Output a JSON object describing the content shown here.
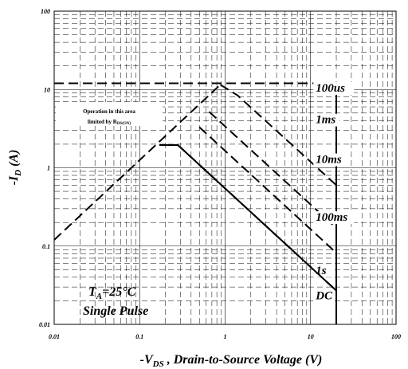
{
  "chart_data": {
    "type": "line",
    "title": "",
    "xlabel": {
      "prefix": "-V",
      "sub": "DS",
      "suffix": " , Drain-to-Source Voltage (V)"
    },
    "ylabel": {
      "prefix": "-I",
      "sub": "D",
      "suffix": " (A)"
    },
    "x_scale": "log",
    "y_scale": "log",
    "xlim": [
      0.01,
      100
    ],
    "ylim": [
      0.01,
      100
    ],
    "x_ticks": [
      {
        "value": 0.01,
        "label": "0.01"
      },
      {
        "value": 0.1,
        "label": "0.1"
      },
      {
        "value": 1,
        "label": "1"
      },
      {
        "value": 10,
        "label": "10"
      },
      {
        "value": 100,
        "label": "100"
      }
    ],
    "y_ticks": [
      {
        "value": 0.01,
        "label": "0.01"
      },
      {
        "value": 0.1,
        "label": "0.1"
      },
      {
        "value": 1,
        "label": "1"
      },
      {
        "value": 10,
        "label": "10"
      },
      {
        "value": 100,
        "label": "100"
      }
    ],
    "grid": true,
    "series": [
      {
        "name": "100us",
        "style": "dashed",
        "label_at": [
          11.5,
          9.4
        ],
        "points": [
          [
            0.88,
            11.5
          ],
          [
            1.4,
            8.4
          ],
          [
            20,
            0.6
          ]
        ]
      },
      {
        "name": "1ms",
        "style": "dashed",
        "label_at": [
          11.5,
          3.7
        ],
        "points": [
          [
            0.65,
            5.2
          ],
          [
            20,
            0.17
          ]
        ]
      },
      {
        "name": "10ms",
        "style": "dashed",
        "label_at": [
          11.5,
          1.15
        ],
        "points": [
          [
            0.5,
            3.3
          ],
          [
            20,
            0.082
          ]
        ]
      },
      {
        "name": "100ms",
        "style": "dashed",
        "label_at": [
          11.5,
          0.21
        ],
        "points": [
          [
            0.28,
            1.95
          ],
          [
            20,
            0.027
          ]
        ]
      },
      {
        "name": "1s",
        "style": "dashed",
        "label_at": [
          11.5,
          0.044
        ],
        "points": [
          [
            0.28,
            1.95
          ],
          [
            20,
            0.027
          ]
        ]
      },
      {
        "name": "DC",
        "style": "solid",
        "label_at": [
          11.5,
          0.021
        ],
        "points": [
          [
            0.17,
            1.95
          ],
          [
            0.28,
            1.95
          ],
          [
            20,
            0.027
          ]
        ]
      }
    ],
    "rds_limit_line": {
      "style": "dashed",
      "points": [
        [
          0.01,
          0.12
        ],
        [
          0.88,
          11.5
        ]
      ]
    },
    "current_limit_line": {
      "style": "dashed",
      "points": [
        [
          0.01,
          12
        ],
        [
          20,
          12
        ]
      ]
    },
    "voltage_limit_line": {
      "style": "solid",
      "points": [
        [
          20,
          0.01
        ],
        [
          20,
          12
        ]
      ]
    },
    "annotations": {
      "area_note_line1": "Operation in this area",
      "area_note_line2": "limited by R",
      "area_note_sub": "DS(ON)",
      "condition_t_main": "T",
      "condition_t_sub": "A",
      "condition_t_rest": "=25°C",
      "condition_pulse": "Single Pulse"
    }
  }
}
